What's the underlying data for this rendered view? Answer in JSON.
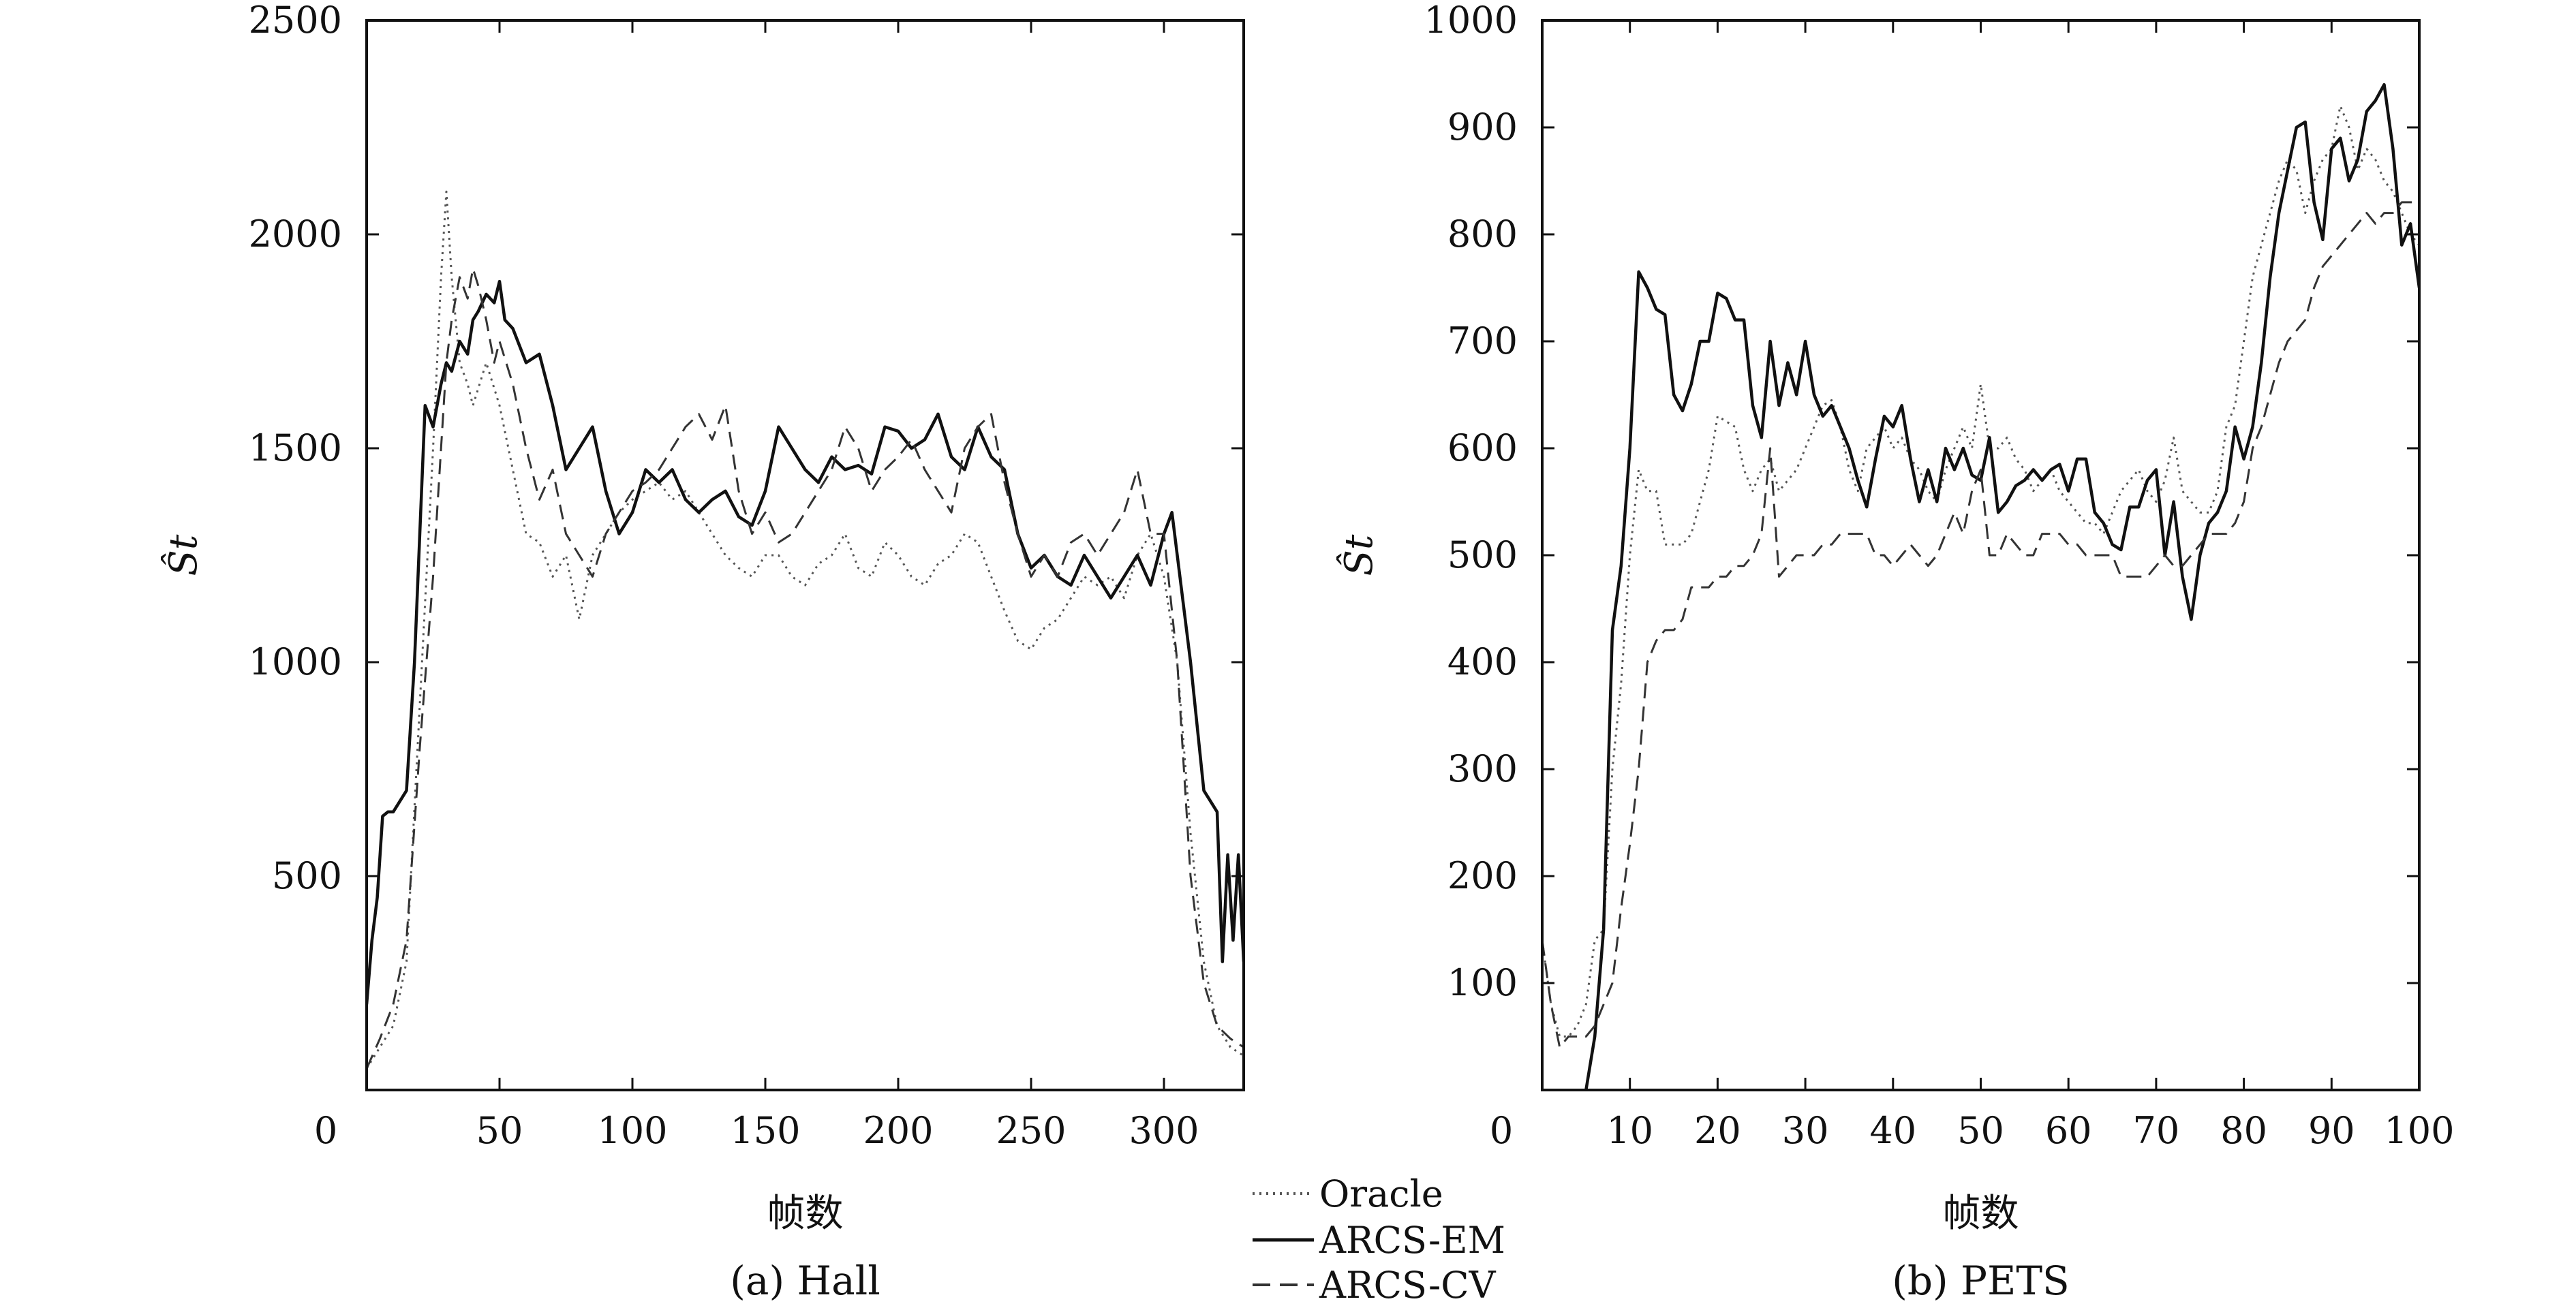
{
  "legend": {
    "entries": [
      {
        "name": "Oracle",
        "color": "#555555",
        "dash": "dotted"
      },
      {
        "name": "ARCS-EM",
        "color": "#111111",
        "dash": "solid"
      },
      {
        "name": "ARCS-CV",
        "color": "#333333",
        "dash": "dashed"
      }
    ]
  },
  "chart_data": [
    {
      "type": "line",
      "caption": "(a) Hall",
      "xlabel": "帧数",
      "ylabel": "Ŝt",
      "xlim": [
        0,
        330
      ],
      "ylim": [
        0,
        2500
      ],
      "xticks": [
        0,
        50,
        100,
        150,
        200,
        250,
        300
      ],
      "yticks": [
        500,
        1000,
        1500,
        2000,
        2500
      ],
      "grid": false,
      "series": [
        {
          "name": "Oracle",
          "x": [
            0,
            5,
            10,
            15,
            20,
            25,
            28,
            30,
            32,
            35,
            38,
            40,
            45,
            50,
            55,
            60,
            65,
            70,
            75,
            80,
            85,
            90,
            95,
            100,
            105,
            110,
            115,
            120,
            125,
            130,
            135,
            140,
            145,
            150,
            155,
            160,
            165,
            170,
            175,
            180,
            185,
            190,
            195,
            200,
            205,
            210,
            215,
            220,
            225,
            230,
            235,
            240,
            245,
            250,
            255,
            260,
            265,
            270,
            275,
            280,
            285,
            290,
            295,
            300,
            305,
            310,
            315,
            320,
            325,
            330
          ],
          "y": [
            50,
            100,
            150,
            300,
            900,
            1500,
            1900,
            2100,
            1900,
            1700,
            1650,
            1600,
            1700,
            1600,
            1450,
            1300,
            1280,
            1200,
            1250,
            1100,
            1250,
            1300,
            1350,
            1380,
            1400,
            1420,
            1380,
            1400,
            1350,
            1300,
            1250,
            1220,
            1200,
            1250,
            1250,
            1200,
            1180,
            1230,
            1250,
            1300,
            1220,
            1200,
            1280,
            1250,
            1200,
            1180,
            1230,
            1250,
            1300,
            1280,
            1200,
            1120,
            1050,
            1030,
            1080,
            1100,
            1150,
            1200,
            1180,
            1200,
            1150,
            1250,
            1300,
            1200,
            1000,
            600,
            300,
            150,
            100,
            80
          ]
        },
        {
          "name": "ARCS-EM",
          "x": [
            0,
            2,
            4,
            6,
            8,
            10,
            15,
            18,
            20,
            22,
            25,
            28,
            30,
            32,
            35,
            38,
            40,
            42,
            45,
            48,
            50,
            52,
            55,
            60,
            65,
            70,
            75,
            80,
            85,
            90,
            95,
            100,
            105,
            110,
            115,
            120,
            125,
            130,
            135,
            140,
            145,
            150,
            155,
            160,
            165,
            170,
            175,
            180,
            185,
            190,
            195,
            200,
            205,
            210,
            215,
            220,
            225,
            230,
            235,
            240,
            245,
            250,
            255,
            260,
            265,
            270,
            275,
            280,
            285,
            290,
            295,
            300,
            303,
            305,
            310,
            315,
            320,
            322,
            324,
            326,
            328,
            330
          ],
          "y": [
            200,
            350,
            450,
            640,
            650,
            650,
            700,
            1000,
            1300,
            1600,
            1550,
            1650,
            1700,
            1680,
            1750,
            1720,
            1800,
            1820,
            1860,
            1840,
            1890,
            1800,
            1780,
            1700,
            1720,
            1600,
            1450,
            1500,
            1550,
            1400,
            1300,
            1350,
            1450,
            1420,
            1450,
            1380,
            1350,
            1380,
            1400,
            1340,
            1320,
            1400,
            1550,
            1500,
            1450,
            1420,
            1480,
            1450,
            1460,
            1440,
            1550,
            1540,
            1500,
            1520,
            1580,
            1480,
            1450,
            1550,
            1480,
            1450,
            1300,
            1220,
            1250,
            1200,
            1180,
            1250,
            1200,
            1150,
            1200,
            1250,
            1180,
            1300,
            1350,
            1250,
            1000,
            700,
            650,
            300,
            550,
            350,
            550,
            300
          ]
        },
        {
          "name": "ARCS-CV",
          "x": [
            0,
            5,
            10,
            15,
            20,
            25,
            28,
            30,
            32,
            35,
            38,
            40,
            42,
            45,
            48,
            50,
            55,
            60,
            65,
            70,
            75,
            80,
            85,
            90,
            95,
            100,
            105,
            110,
            115,
            120,
            125,
            130,
            135,
            140,
            145,
            150,
            155,
            160,
            165,
            170,
            175,
            180,
            185,
            190,
            195,
            200,
            205,
            210,
            215,
            220,
            225,
            230,
            235,
            240,
            245,
            250,
            255,
            260,
            265,
            270,
            275,
            280,
            285,
            290,
            295,
            300,
            305,
            310,
            315,
            320,
            325,
            330
          ],
          "y": [
            50,
            120,
            200,
            350,
            800,
            1200,
            1500,
            1700,
            1800,
            1900,
            1850,
            1920,
            1880,
            1800,
            1700,
            1750,
            1650,
            1500,
            1380,
            1450,
            1300,
            1250,
            1200,
            1300,
            1350,
            1400,
            1420,
            1450,
            1500,
            1550,
            1580,
            1520,
            1600,
            1400,
            1300,
            1350,
            1280,
            1300,
            1350,
            1400,
            1450,
            1550,
            1500,
            1400,
            1450,
            1480,
            1520,
            1450,
            1400,
            1350,
            1500,
            1550,
            1580,
            1420,
            1300,
            1200,
            1250,
            1200,
            1280,
            1300,
            1250,
            1300,
            1350,
            1450,
            1300,
            1300,
            1000,
            500,
            250,
            150,
            120,
            100
          ]
        }
      ]
    },
    {
      "type": "line",
      "caption": "(b) PETS",
      "xlabel": "帧数",
      "ylabel": "Ŝt",
      "xlim": [
        0,
        100
      ],
      "ylim": [
        0,
        1000
      ],
      "xticks": [
        0,
        10,
        20,
        30,
        40,
        50,
        60,
        70,
        80,
        90,
        100
      ],
      "yticks": [
        100,
        200,
        300,
        400,
        500,
        600,
        700,
        800,
        900,
        1000
      ],
      "grid": false,
      "series": [
        {
          "name": "Oracle",
          "x": [
            0,
            1,
            2,
            3,
            4,
            5,
            6,
            7,
            8,
            9,
            10,
            11,
            12,
            13,
            14,
            15,
            16,
            17,
            18,
            19,
            20,
            21,
            22,
            23,
            24,
            25,
            26,
            27,
            28,
            29,
            30,
            31,
            32,
            33,
            34,
            35,
            36,
            37,
            38,
            39,
            40,
            41,
            42,
            43,
            44,
            45,
            46,
            47,
            48,
            49,
            50,
            51,
            52,
            53,
            54,
            55,
            56,
            57,
            58,
            59,
            60,
            61,
            62,
            63,
            64,
            65,
            66,
            67,
            68,
            69,
            70,
            71,
            72,
            73,
            74,
            75,
            76,
            77,
            78,
            79,
            80,
            81,
            82,
            83,
            84,
            85,
            86,
            87,
            88,
            89,
            90,
            91,
            92,
            93,
            94,
            95,
            96,
            97,
            98,
            99,
            100
          ],
          "y": [
            140,
            80,
            50,
            50,
            60,
            80,
            140,
            150,
            300,
            380,
            500,
            580,
            560,
            560,
            510,
            510,
            510,
            520,
            550,
            580,
            630,
            625,
            620,
            580,
            560,
            580,
            590,
            560,
            570,
            580,
            600,
            620,
            640,
            645,
            620,
            580,
            560,
            600,
            610,
            620,
            600,
            610,
            590,
            580,
            560,
            550,
            580,
            600,
            620,
            600,
            660,
            600,
            600,
            610,
            590,
            580,
            560,
            570,
            580,
            560,
            550,
            540,
            530,
            530,
            520,
            540,
            560,
            570,
            580,
            560,
            550,
            570,
            610,
            560,
            550,
            540,
            540,
            560,
            620,
            640,
            700,
            760,
            790,
            820,
            850,
            870,
            860,
            820,
            850,
            870,
            880,
            920,
            900,
            860,
            880,
            870,
            850,
            840,
            820,
            800,
            790
          ]
        },
        {
          "name": "ARCS-EM",
          "x": [
            5,
            6,
            7,
            8,
            9,
            10,
            11,
            12,
            13,
            14,
            15,
            16,
            17,
            18,
            19,
            20,
            21,
            22,
            23,
            24,
            25,
            26,
            27,
            28,
            29,
            30,
            31,
            32,
            33,
            34,
            35,
            36,
            37,
            38,
            39,
            40,
            41,
            42,
            43,
            44,
            45,
            46,
            47,
            48,
            49,
            50,
            51,
            52,
            53,
            54,
            55,
            56,
            57,
            58,
            59,
            60,
            61,
            62,
            63,
            64,
            65,
            66,
            67,
            68,
            69,
            70,
            71,
            72,
            73,
            74,
            75,
            76,
            77,
            78,
            79,
            80,
            81,
            82,
            83,
            84,
            85,
            86,
            87,
            88,
            89,
            90,
            91,
            92,
            93,
            94,
            95,
            96,
            97,
            98,
            99,
            100
          ],
          "y": [
            0,
            50,
            150,
            430,
            490,
            600,
            765,
            750,
            730,
            725,
            650,
            635,
            660,
            700,
            700,
            745,
            740,
            720,
            720,
            640,
            610,
            700,
            640,
            680,
            650,
            700,
            650,
            630,
            640,
            620,
            600,
            570,
            545,
            590,
            630,
            620,
            640,
            590,
            550,
            580,
            550,
            600,
            580,
            600,
            575,
            570,
            610,
            540,
            550,
            565,
            570,
            580,
            570,
            580,
            585,
            560,
            590,
            590,
            540,
            530,
            510,
            505,
            545,
            545,
            570,
            580,
            500,
            550,
            480,
            440,
            500,
            530,
            540,
            560,
            620,
            590,
            620,
            680,
            760,
            820,
            860,
            900,
            905,
            830,
            795,
            880,
            890,
            850,
            870,
            915,
            925,
            940,
            880,
            790,
            810,
            750
          ]
        },
        {
          "name": "ARCS-CV",
          "x": [
            0,
            1,
            2,
            3,
            4,
            5,
            6,
            7,
            8,
            9,
            10,
            11,
            12,
            13,
            14,
            15,
            16,
            17,
            18,
            19,
            20,
            21,
            22,
            23,
            24,
            25,
            26,
            27,
            28,
            29,
            30,
            31,
            32,
            33,
            34,
            35,
            36,
            37,
            38,
            39,
            40,
            41,
            42,
            43,
            44,
            45,
            46,
            47,
            48,
            49,
            50,
            51,
            52,
            53,
            54,
            55,
            56,
            57,
            58,
            59,
            60,
            61,
            62,
            63,
            64,
            65,
            66,
            67,
            68,
            69,
            70,
            71,
            72,
            73,
            74,
            75,
            76,
            77,
            78,
            79,
            80,
            81,
            82,
            83,
            84,
            85,
            86,
            87,
            88,
            89,
            90,
            91,
            92,
            93,
            94,
            95,
            96,
            97,
            98,
            99,
            100
          ],
          "y": [
            140,
            80,
            40,
            50,
            50,
            50,
            60,
            80,
            100,
            170,
            230,
            300,
            400,
            420,
            430,
            430,
            440,
            470,
            470,
            470,
            480,
            480,
            490,
            490,
            500,
            520,
            600,
            480,
            490,
            500,
            500,
            500,
            510,
            510,
            520,
            520,
            520,
            520,
            500,
            500,
            490,
            500,
            510,
            500,
            490,
            500,
            520,
            540,
            520,
            560,
            580,
            500,
            500,
            520,
            510,
            500,
            500,
            520,
            520,
            520,
            510,
            510,
            500,
            500,
            500,
            500,
            480,
            480,
            480,
            480,
            490,
            500,
            490,
            490,
            500,
            510,
            520,
            520,
            520,
            530,
            550,
            600,
            620,
            650,
            680,
            700,
            710,
            720,
            750,
            770,
            780,
            790,
            800,
            810,
            820,
            810,
            820,
            820,
            830,
            830,
            830
          ]
        }
      ]
    }
  ]
}
